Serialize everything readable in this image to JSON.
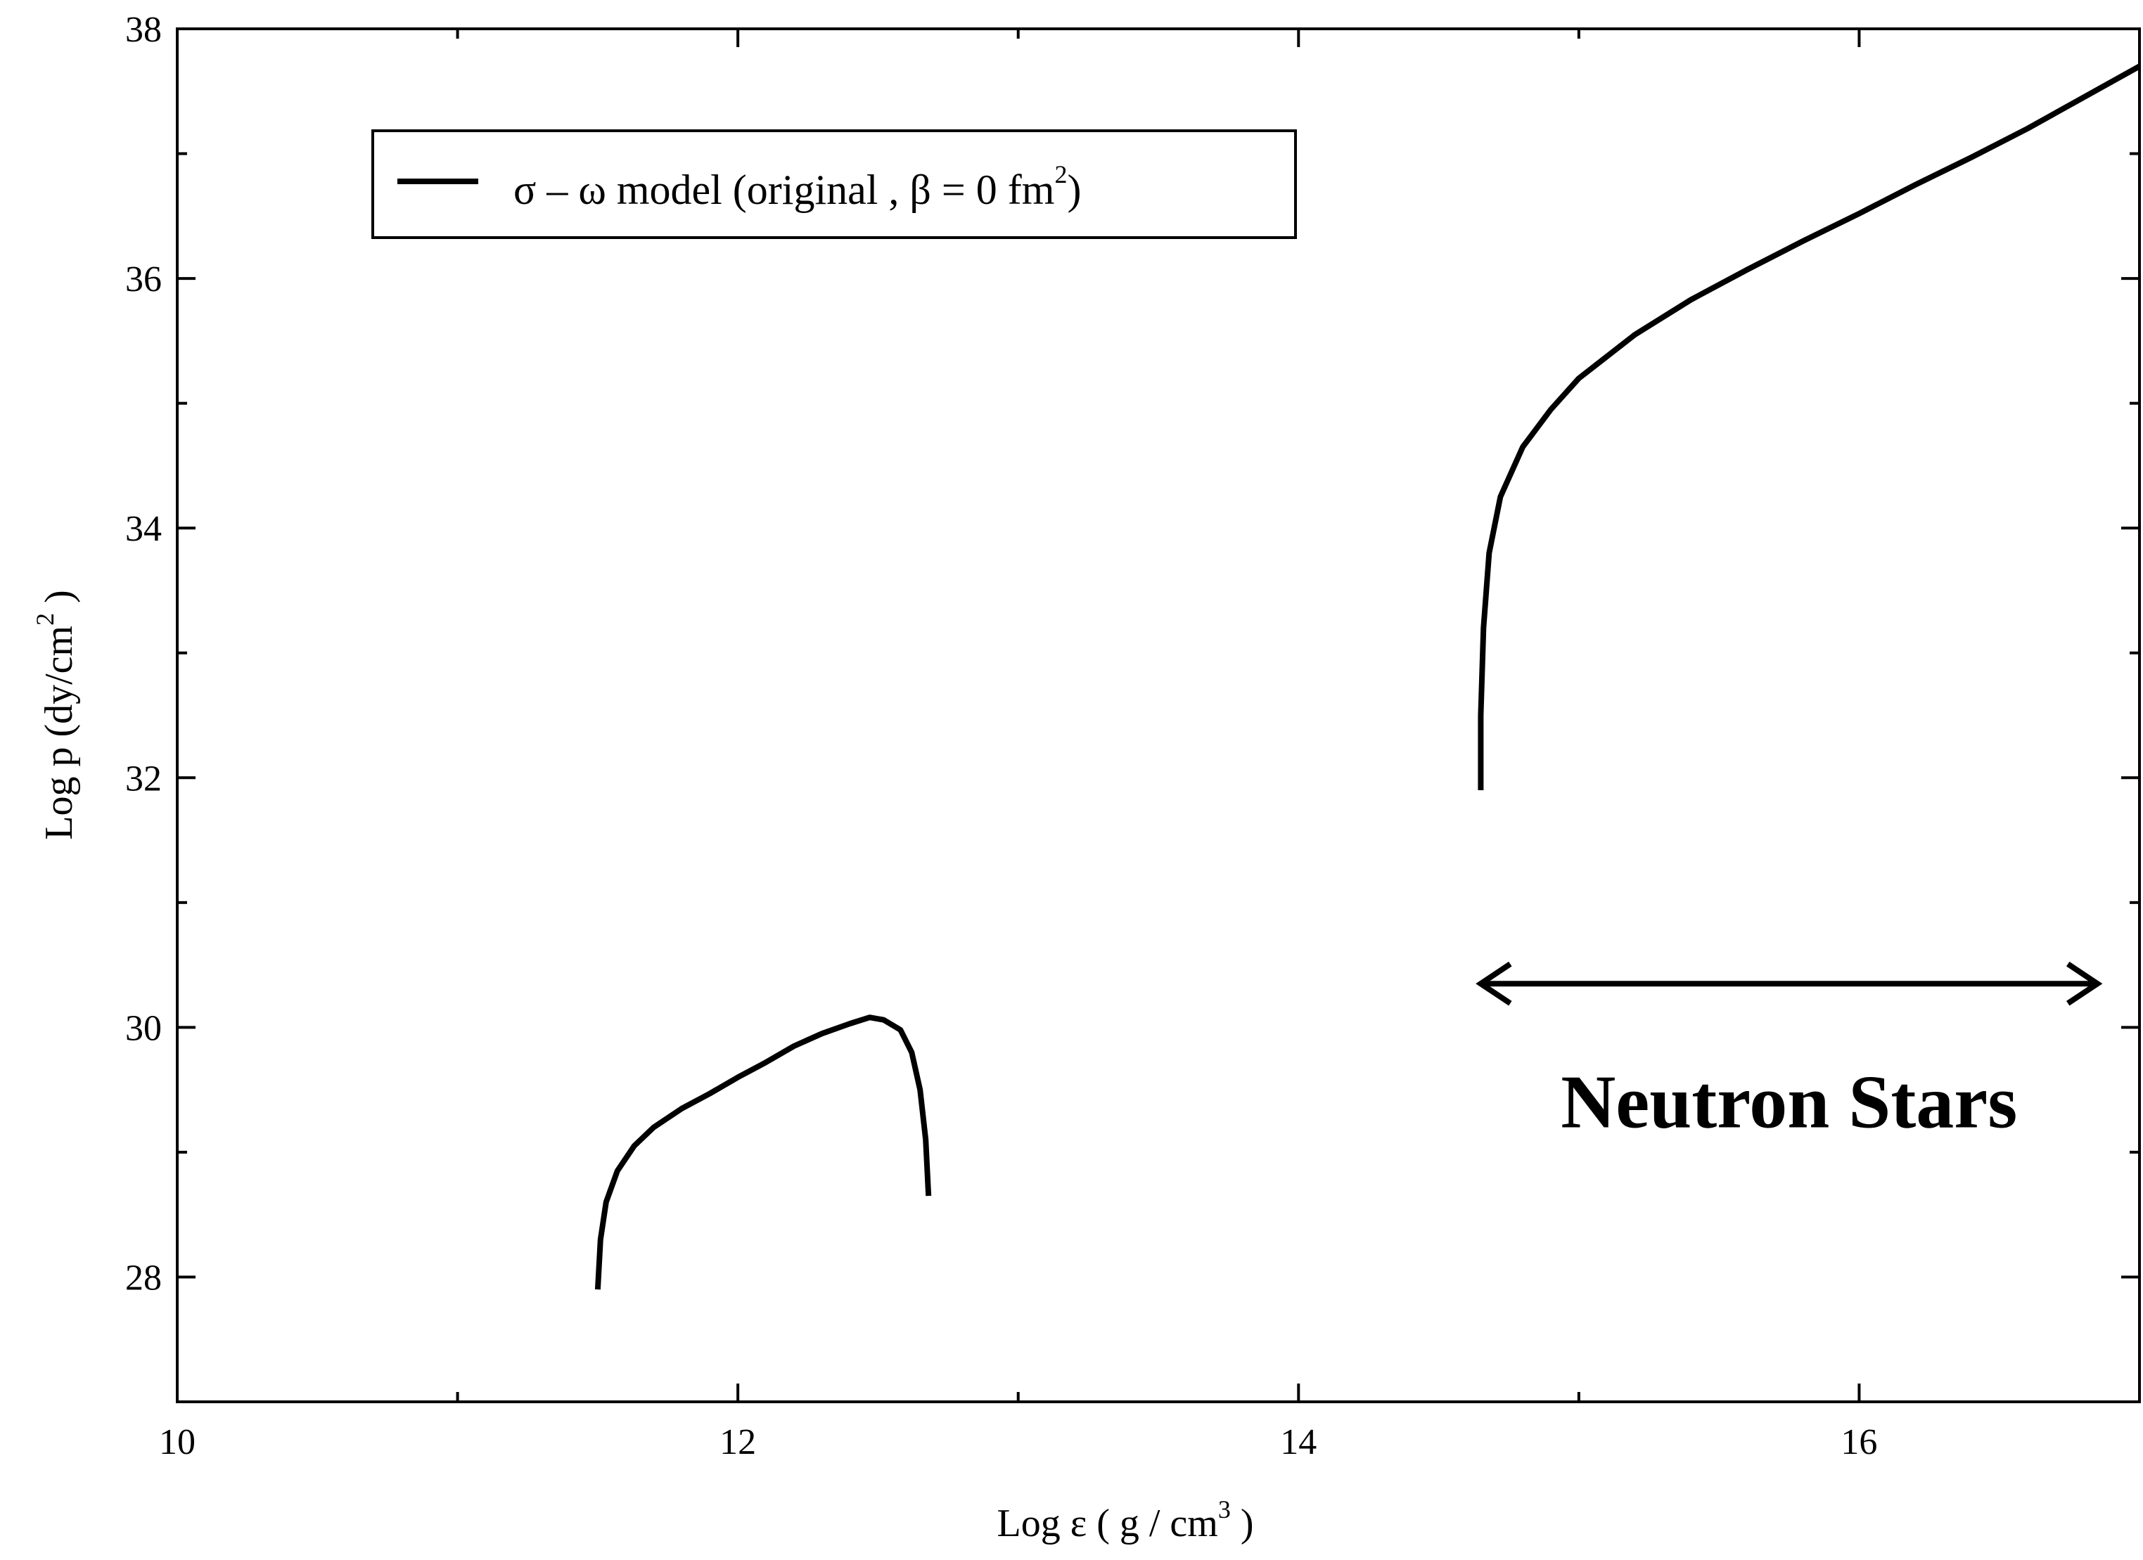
{
  "chart_data": {
    "type": "line",
    "title": "",
    "xlabel": {
      "main": "Log ε  ( g / cm",
      "sup": "3",
      "tail": " )"
    },
    "ylabel": {
      "main": "Log p   (dy/cm",
      "sup": "2",
      "tail": " )"
    },
    "xlim": [
      10,
      17
    ],
    "ylim": [
      27,
      38
    ],
    "x_major_ticks": [
      10,
      12,
      14,
      16
    ],
    "x_minor_ticks": [
      11,
      13,
      15
    ],
    "y_major_ticks": [
      28,
      30,
      32,
      34,
      36,
      38
    ],
    "y_minor_ticks": [
      29,
      31,
      33,
      35,
      37
    ],
    "grid": false,
    "legend_position": "top-left",
    "series": [
      {
        "name": "σ – ω  model (original , β = 0 fm",
        "name_sup": "2",
        "name_tail": ")",
        "color": "#000000",
        "segments": [
          [
            [
              11.5,
              27.9
            ],
            [
              11.51,
              28.3
            ],
            [
              11.53,
              28.6
            ],
            [
              11.57,
              28.85
            ],
            [
              11.63,
              29.05
            ],
            [
              11.7,
              29.2
            ],
            [
              11.8,
              29.35
            ],
            [
              11.9,
              29.47
            ],
            [
              12.0,
              29.6
            ],
            [
              12.1,
              29.72
            ],
            [
              12.2,
              29.85
            ],
            [
              12.3,
              29.95
            ],
            [
              12.4,
              30.03
            ],
            [
              12.47,
              30.08
            ],
            [
              12.52,
              30.06
            ],
            [
              12.58,
              29.98
            ],
            [
              12.62,
              29.8
            ],
            [
              12.65,
              29.5
            ],
            [
              12.67,
              29.1
            ],
            [
              12.68,
              28.65
            ]
          ],
          [
            [
              14.65,
              31.9
            ],
            [
              14.65,
              32.5
            ],
            [
              14.66,
              33.2
            ],
            [
              14.68,
              33.8
            ],
            [
              14.72,
              34.25
            ],
            [
              14.8,
              34.65
            ],
            [
              14.9,
              34.95
            ],
            [
              15.0,
              35.2
            ],
            [
              15.2,
              35.55
            ],
            [
              15.4,
              35.83
            ],
            [
              15.6,
              36.07
            ],
            [
              15.8,
              36.3
            ],
            [
              16.0,
              36.52
            ],
            [
              16.2,
              36.75
            ],
            [
              16.4,
              36.97
            ],
            [
              16.6,
              37.2
            ],
            [
              16.8,
              37.45
            ],
            [
              17.0,
              37.7
            ],
            [
              17.2,
              37.95
            ]
          ]
        ]
      }
    ],
    "annotation": {
      "text": "Neutron Stars",
      "arrow_from_x": 14.65,
      "arrow_to_x": 16.85,
      "arrow_y": 30.35,
      "text_center_x": 15.75,
      "text_baseline_y": 29.2
    }
  }
}
